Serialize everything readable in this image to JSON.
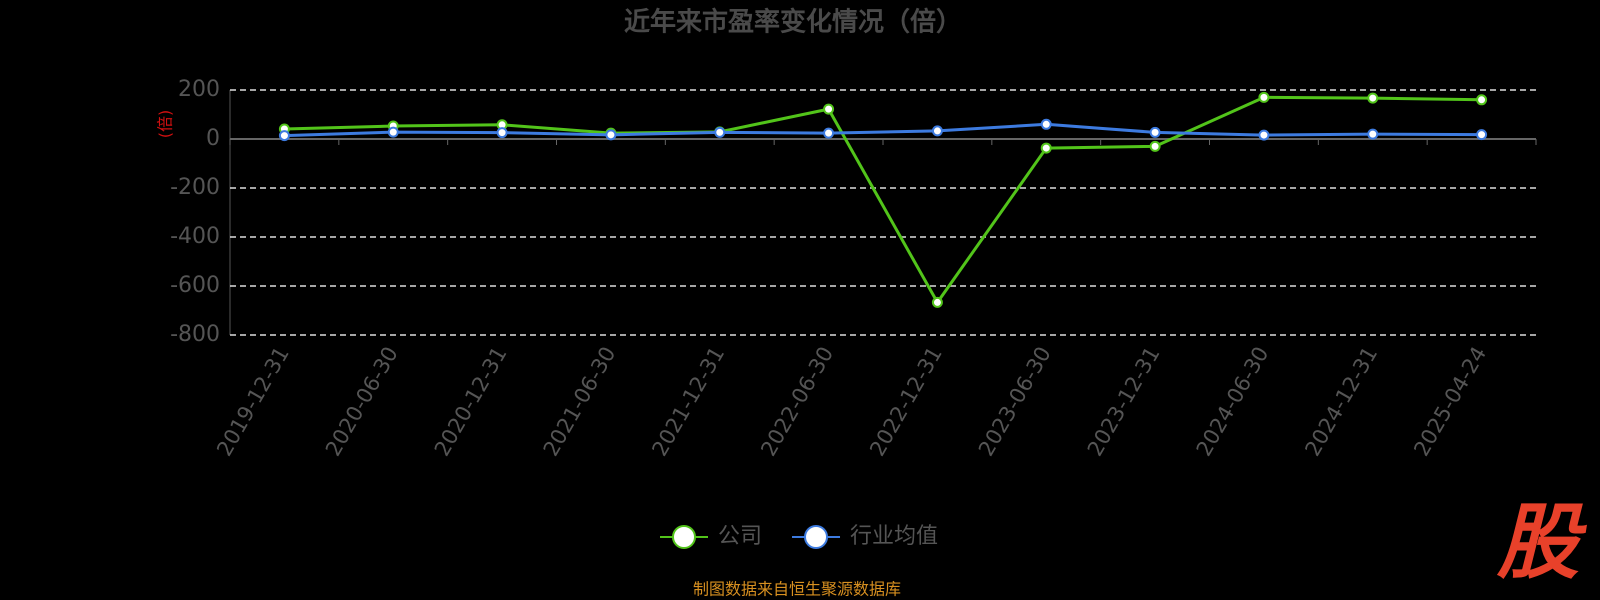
{
  "chart_data": {
    "type": "line",
    "title": "近年来市盈率变化情况（倍）",
    "y_label": "(倍)",
    "categories": [
      "2019-12-31",
      "2020-06-30",
      "2020-12-31",
      "2021-06-30",
      "2021-12-31",
      "2022-06-30",
      "2022-12-31",
      "2023-06-30",
      "2023-12-31",
      "2024-06-30",
      "2024-12-31",
      "2025-04-24"
    ],
    "series": [
      {
        "name": "公司",
        "color": "#52c41a",
        "values": [
          41,
          53,
          58,
          24,
          29,
          122,
          -667,
          -37,
          -30,
          170,
          167,
          160
        ]
      },
      {
        "name": "行业均值",
        "color": "#3d7be0",
        "values": [
          14,
          28,
          26,
          17,
          27,
          24,
          33,
          60,
          27,
          16,
          20,
          18
        ]
      }
    ],
    "ylim": [
      -800,
      200
    ],
    "yticks": [
      200,
      0,
      -200,
      -400,
      -600,
      -800
    ],
    "grid": true,
    "legend": "bottom",
    "source": "制图数据来自恒生聚源数据库",
    "logo": "股"
  }
}
